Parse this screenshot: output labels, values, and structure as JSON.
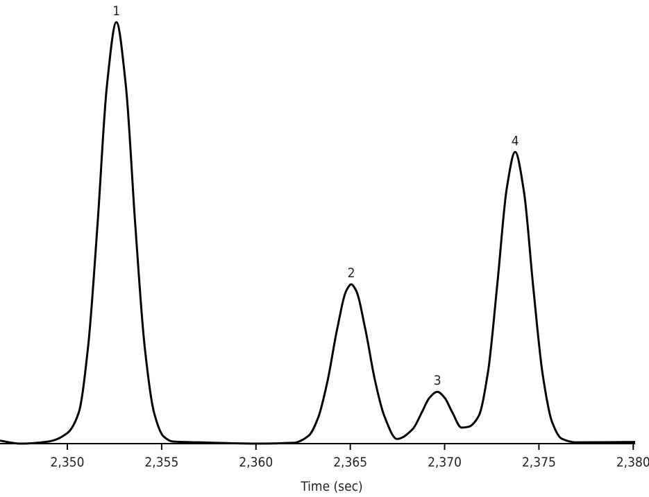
{
  "chart_data": {
    "type": "line",
    "xlabel": "Time (sec)",
    "x": [
      2346.43,
      2347.5,
      2349.0,
      2350.0,
      2350.6,
      2351.1,
      2351.6,
      2352.1,
      2352.6,
      2353.1,
      2353.6,
      2354.1,
      2354.6,
      2355.1,
      2355.6,
      2357.0,
      2360.0,
      2362.0,
      2362.8,
      2363.3,
      2363.8,
      2364.3,
      2364.8,
      2365.05,
      2365.3,
      2365.8,
      2366.3,
      2366.8,
      2367.48,
      2368.3,
      2368.8,
      2369.2,
      2369.62,
      2370.0,
      2370.4,
      2370.9,
      2371.27,
      2371.8,
      2372.3,
      2372.8,
      2373.3,
      2373.74,
      2374.2,
      2374.7,
      2375.2,
      2375.7,
      2376.2,
      2377.0,
      2380.1
    ],
    "series": [
      {
        "color": "#000000",
        "values": [
          0.7,
          0.0,
          0.5,
          2.5,
          7.3,
          23,
          52,
          85,
          100,
          85,
          52,
          23,
          7.3,
          1.7,
          0.5,
          0.3,
          0.0,
          0.2,
          1.9,
          6.2,
          15.0,
          27.1,
          36.4,
          37.8,
          36.4,
          27.1,
          15.2,
          6.6,
          1.1,
          3.4,
          7.5,
          10.9,
          12.3,
          10.9,
          7.5,
          3.8,
          4.0,
          6.5,
          17.0,
          38.1,
          60.7,
          69.2,
          60.0,
          37.1,
          16.4,
          5.1,
          1.2,
          0.3,
          0.4
        ]
      }
    ],
    "annotations": [
      {
        "text": "1",
        "x": 2352.6,
        "y": 100
      },
      {
        "text": "2",
        "x": 2365.05,
        "y": 37.8
      },
      {
        "text": "3",
        "x": 2369.62,
        "y": 12.3
      },
      {
        "text": "4",
        "x": 2373.74,
        "y": 69.2
      }
    ],
    "xlim": [
      2346.43,
      2380.1
    ],
    "ylim": [
      0,
      100
    ],
    "xticks": [
      {
        "value": 2350,
        "label": "2,350"
      },
      {
        "value": 2355,
        "label": "2,355"
      },
      {
        "value": 2360,
        "label": "2,360"
      },
      {
        "value": 2365,
        "label": "2,365"
      },
      {
        "value": 2370,
        "label": "2,370"
      },
      {
        "value": 2375,
        "label": "2,375"
      },
      {
        "value": 2380,
        "label": "2,380"
      }
    ]
  }
}
